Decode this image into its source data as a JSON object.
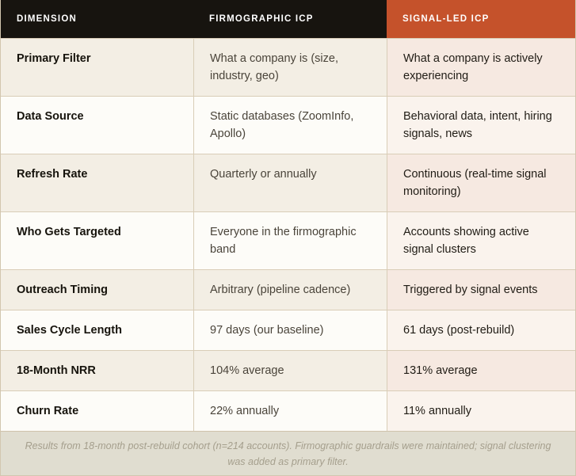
{
  "chart_data": {
    "type": "table",
    "columns": [
      "DIMENSION",
      "FIRMOGRAPHIC ICP",
      "SIGNAL-LED ICP"
    ],
    "rows": [
      [
        "Primary Filter",
        "What a company is (size, industry, geo)",
        "What a company is actively experiencing"
      ],
      [
        "Data Source",
        "Static databases (ZoomInfo, Apollo)",
        "Behavioral data, intent, hiring signals, news"
      ],
      [
        "Refresh Rate",
        "Quarterly or annually",
        "Continuous (real-time signal monitoring)"
      ],
      [
        "Who Gets Targeted",
        "Everyone in the firmographic band",
        "Accounts showing active signal clusters"
      ],
      [
        "Outreach Timing",
        "Arbitrary (pipeline cadence)",
        "Triggered by signal events"
      ],
      [
        "Sales Cycle Length",
        "97 days (our baseline)",
        "61 days (post-rebuild)"
      ],
      [
        "18-Month NRR",
        "104% average",
        "131% average"
      ],
      [
        "Churn Rate",
        "22% annually",
        "11% annually"
      ]
    ],
    "footnote": "Results from 18-month post-rebuild cohort (n=214 accounts). Firmographic guardrails were maintained; signal clustering was added as primary filter.",
    "layout": {
      "legend": "none",
      "grid": "on",
      "row_striping": "alternating cream/white, highlight tint on signal column"
    }
  },
  "colors": {
    "header_dark_bg": "#17140f",
    "header_accent_bg": "#c5522b",
    "header_text": "#ffffff",
    "row_odd_bg": "#f3eee4",
    "row_even_bg": "#fdfcf8",
    "signal_odd_bg": "#f6e9e1",
    "signal_even_bg": "#faf3ed",
    "border": "#d9cdb7",
    "dimension_text": "#16130c",
    "firmographic_text": "#4a443a",
    "signal_text": "#201c15",
    "footnote_bg": "#e0ddd0",
    "footnote_text": "#a59f8d"
  }
}
